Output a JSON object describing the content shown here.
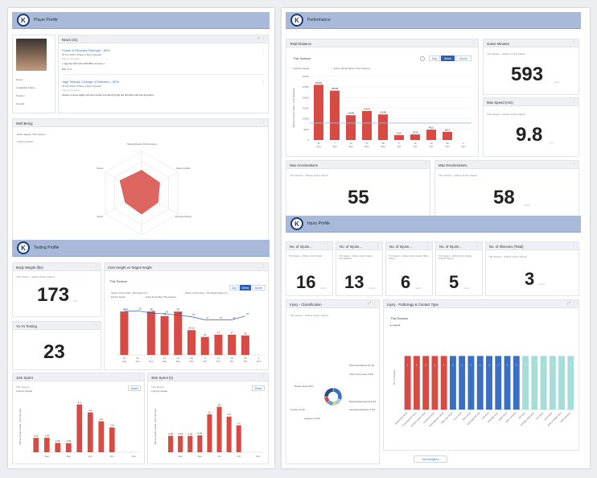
{
  "left": {
    "player_profile": {
      "title": "Player Profile",
      "news_title": "News (31)",
      "news": [
        {
          "title": "Power & Reactive Strength - 80%",
          "meta": "25 Oct 2019 | Phase 3 Sport Specific",
          "tag": "Player Overview",
          "line1": "7.1kg bar CMJ with 20% BW 1.8 s/rep x",
          "line2": "RSI: 1.7+"
        },
        {
          "title": "High Velocity Change of Direction - 80%",
          "meta": "25 Oct 2019 | Phase 3 Sport Specific",
          "tag": "Player Overview",
          "line1": "Assess 3 times agility test time before introducing high led drill with ball and opposition",
          "line2": ""
        }
      ],
      "fields": [
        "Name",
        "Availability Status",
        "Position",
        "Squads"
      ]
    },
    "wellbeing": {
      "title": "Well Being",
      "subtitle": "Entire Squad: This Season",
      "legend": "Entire Squad",
      "axes": [
        "Training/Game Performance",
        "Sleep Quality",
        "Appetite Rating",
        "Energy",
        "Mood",
        "Stress"
      ]
    },
    "testing_profile": {
      "title": "Testing Profile",
      "bodyweight": {
        "title": "Body Weight (lbs)",
        "sub": "This Season · Athlete: Entire Squad",
        "value": "173",
        "unit": "lbs"
      },
      "yoyo": {
        "title": "Yo-Yo Testing",
        "value": "23",
        "unit": ""
      },
      "cmj": {
        "title": "CMJ Height vs Target Height",
        "season": "This Season",
        "buttons": [
          "Day",
          "Week",
          "Month"
        ],
        "legend": [
          "Allman Custom Data - CMJ Height (cm)",
          "Entire Squad Max (This Season)",
          "Allman Custom Data - CMJ Height Target (cm)",
          "Entire Squad"
        ],
        "ticks": [
          "24 Aug",
          "31 Aug",
          "7 Sep",
          "14 Sep",
          "21 Sep",
          "28 Sep",
          "5 Oct",
          "12 Oct",
          "19 Oct",
          "26 Oct",
          "2 Nov"
        ]
      },
      "sprint10": {
        "title": "10m Sprint",
        "sub": "This Season",
        "legend": "Entire Squad",
        "button": "Week",
        "ylabel": "Allman Custom Data - 10m Sprint(s)",
        "ticks": [
          "",
          "Sep",
          "",
          "Sep",
          "",
          "Oct",
          "",
          "Oct",
          "",
          "Nov"
        ]
      },
      "sprint30": {
        "title": "30m Sprint (s)",
        "sub": "This Season",
        "legend": "Entire Squad",
        "button": "Week",
        "ylabel": "Allman Custom Data - 30m Sprint(s)",
        "ticks": [
          "",
          "Sep",
          "",
          "Sep",
          "",
          "Oct",
          "",
          "Oct",
          "",
          "Nov"
        ]
      }
    }
  },
  "right": {
    "performance": {
      "title": "Performance",
      "total_distance": {
        "title": "Total Distance",
        "season": "This Season",
        "buttons": [
          "Day",
          "Week",
          "Month"
        ],
        "legend": [
          "Entire Squad",
          "Entire Squad Mean (This Season)"
        ],
        "ylabel": "Allman Custom Data - Total Distance",
        "yticks": [
          "30000",
          "25000",
          "20000",
          "15000",
          "10000",
          "5000",
          "0"
        ]
      },
      "game_minutes": {
        "title": "Game Minutes",
        "sub": "This Season · Athlete: Entire Squad",
        "value": "593",
        "unit": "mins"
      },
      "max_speed": {
        "title": "Max Speed (m/s)",
        "sub": "This Season · Athlete: Entire Squad",
        "value": "9.8",
        "unit": "m/s"
      },
      "max_acc": {
        "title": "Max Accelerations",
        "sub": "This Season · Athlete: Entire Squad",
        "value": "55",
        "unit": ""
      },
      "max_dec": {
        "title": "Max Decelerations",
        "sub": "This Season · Athlete: Entire Squad",
        "value": "58",
        "unit": "count"
      }
    },
    "injury": {
      "title": "Injury Profile",
      "kpis": [
        {
          "title": "No. of Injurie...",
          "sub": "This Season · Athlete: Entire Squad",
          "value": "16",
          "unit": "count"
        },
        {
          "title": "No. of Injurie...",
          "sub": "This Season · Athlete: Entire Squad · Intermediately",
          "value": "13",
          "unit": "count"
        },
        {
          "title": "No. of Injurie...",
          "sub": "This Season · Athlete: Entire Squad · Bitter Games",
          "value": "6",
          "unit": "count"
        },
        {
          "title": "No. of Injurie...",
          "sub": "This Season · Athlete: Entire Squad · Outside Training",
          "value": "5",
          "unit": "count"
        },
        {
          "title": "No. of Illnesses (Total)",
          "sub": "This Season · Athlete: Entire Squad",
          "value": "3",
          "unit": "count"
        }
      ],
      "classification": {
        "title": "Injury - Classification",
        "sub": "This Season · Athlete: Entire Squad",
        "labels": [
          "Musculotendinous 31.3%",
          "Other Joint Lesion 6.3%",
          "Bruising/Haematoma 6.3%",
          "Laceration/Abrasion 6.3%",
          "Ligament 12.5%",
          "Tendon 12.5%",
          "Muscle Strain 25%"
        ]
      },
      "pathology": {
        "title": "Injury - Pathology & Contact Type",
        "season": "This Season",
        "legend": "Legend",
        "ylabel": "No. of Injuries",
        "bar_value": "1",
        "xlabels": [
          "Quadriceps Strain",
          "Knee ligament Injury",
          "Achilles tendon strain",
          "Hamstring strain",
          "Ankle ligament sprain",
          "Other joint lesion",
          "Groin strain",
          "Wrist sprain",
          "Knee ligament tear",
          "Calf strain",
          "Shoulder injury",
          "Finger Injury",
          "Thigh contusion",
          "Hip Injury",
          "Shoulder dislocation",
          "Foot Injury",
          "Lacerations",
          "Knee cartilage injury",
          "Ankle abrasion"
        ]
      },
      "add_widget": "Add Widget"
    }
  },
  "chart_data": [
    {
      "type": "bar",
      "title": "Total Distance",
      "categories": [
        "31 Aug",
        "7 Sep",
        "14 Sep",
        "21 Sep",
        "28 Sep",
        "5 Oct",
        "12 Oct",
        "19 Oct",
        "26 Oct",
        "2 Nov"
      ],
      "series": [
        {
          "name": "Entire Squad",
          "values": [
            26081,
            23296,
            11698,
            13675,
            12066,
            2327,
            2634,
            4911,
            3871,
            0
          ]
        }
      ],
      "mean_line": 8000,
      "ylabel": "Allman Custom Data - Total Distance",
      "ylim": [
        0,
        30000
      ],
      "color": "#d84b45"
    },
    {
      "type": "bar",
      "title": "CMJ Height vs Target Height",
      "categories": [
        "24 Aug",
        "31 Aug",
        "7 Sep",
        "14 Sep",
        "21 Sep",
        "28 Sep",
        "5 Oct",
        "12 Oct",
        "19 Oct",
        "26 Oct",
        "2 Nov"
      ],
      "series": [
        {
          "name": "Allman Custom Data - CMJ Height (cm)",
          "values": [
            58,
            0,
            58,
            52,
            58,
            33.12,
            24,
            27,
            27,
            26,
            0
          ]
        },
        {
          "name": "Allman Custom Data - CMJ Height Target (cm)",
          "values": [
            58,
            59,
            56,
            55,
            53,
            51,
            47,
            47,
            47,
            52,
            0
          ]
        }
      ],
      "ylim": [
        0,
        70
      ],
      "color": "#d84b45"
    },
    {
      "type": "bar",
      "title": "10m Sprint",
      "categories": [
        "b1",
        "b2",
        "b3",
        "b4",
        "b5",
        "b6",
        "b7",
        "b8",
        "b9",
        "b10"
      ],
      "series": [
        {
          "name": "Entire Squad",
          "values": [
            1.62,
            1.63,
            1.05,
            1.03,
            5.4,
            4.5,
            3.5,
            2.8,
            0,
            0
          ]
        }
      ],
      "ylim": [
        0,
        6
      ],
      "color": "#d84b45"
    },
    {
      "type": "bar",
      "title": "30m Sprint (s)",
      "categories": [
        "b1",
        "b2",
        "b3",
        "b4",
        "b5",
        "b6",
        "b7",
        "b8",
        "b9",
        "b10"
      ],
      "series": [
        {
          "name": "Entire Squad",
          "values": [
            4.35,
            4.31,
            4.29,
            4.45,
            10,
            12,
            9.4,
            7.1,
            0,
            0
          ]
        }
      ],
      "ylim": [
        0,
        14
      ],
      "color": "#d84b45"
    },
    {
      "type": "pie",
      "title": "Injury - Classification",
      "categories": [
        "Musculotendinous",
        "Other Joint Lesion",
        "Bruising/Haematoma",
        "Laceration/Abrasion",
        "Ligament",
        "Tendon",
        "Muscle Strain"
      ],
      "values": [
        31.3,
        6.3,
        6.3,
        6.3,
        12.5,
        12.5,
        25
      ],
      "colors": [
        "#3b6fc4",
        "#8fd3cf",
        "#a8b8d8",
        "#e8c64a",
        "#5aa0d8",
        "#d84b45",
        "#2e4a8a"
      ]
    },
    {
      "type": "bar",
      "title": "Injury - Pathology & Contact Type",
      "categories": [
        "Quadriceps Strain",
        "Knee ligament Injury",
        "Achilles tendon strain",
        "Hamstring strain",
        "Ankle ligament sprain",
        "Other joint lesion",
        "Groin strain",
        "Wrist sprain",
        "Knee ligament tear",
        "Calf strain",
        "Shoulder injury",
        "Finger Injury",
        "Thigh contusion",
        "Hip Injury",
        "Shoulder dislocation",
        "Foot Injury",
        "Lacerations",
        "Knee cartilage injury",
        "Ankle abrasion"
      ],
      "values": [
        1,
        1,
        1,
        1,
        1,
        1,
        1,
        1,
        1,
        1,
        1,
        1,
        1,
        1,
        1,
        1,
        1,
        1,
        1
      ],
      "colors": [
        "#d84b45",
        "#d84b45",
        "#d84b45",
        "#d84b45",
        "#d84b45",
        "#3b6fc4",
        "#3b6fc4",
        "#3b6fc4",
        "#3b6fc4",
        "#3b6fc4",
        "#3b6fc4",
        "#3b6fc4",
        "#3b6fc4",
        "#a6ddd8",
        "#a6ddd8",
        "#a6ddd8",
        "#a6ddd8",
        "#a6ddd8",
        "#a6ddd8"
      ],
      "ylim": [
        0,
        1.2
      ]
    },
    {
      "type": "radar",
      "title": "Well Being",
      "categories": [
        "Training/Game Performance",
        "Sleep Quality",
        "Appetite Rating",
        "Energy",
        "Mood",
        "Stress"
      ],
      "series": [
        {
          "name": "Entire Squad",
          "values": [
            0.55,
            0.5,
            0.45,
            0.5,
            0.45,
            0.6
          ]
        }
      ],
      "color": "#d84b45"
    }
  ]
}
